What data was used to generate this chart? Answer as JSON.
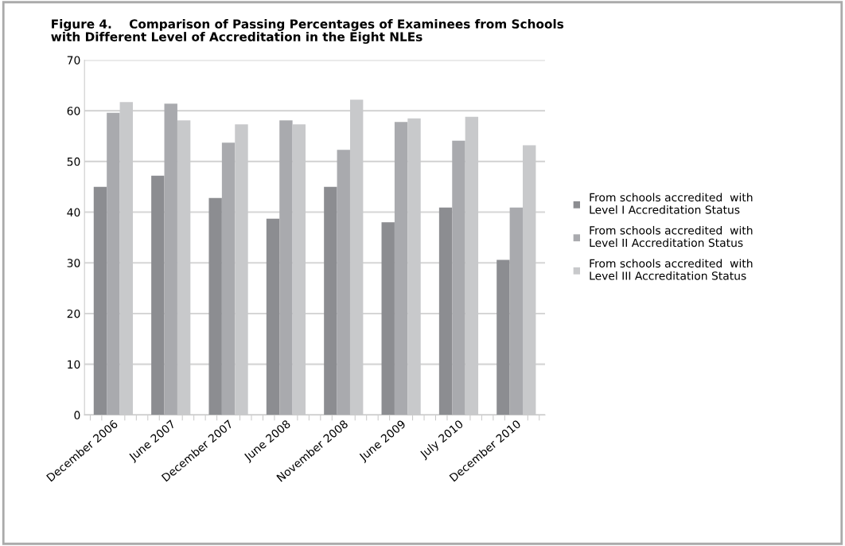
{
  "chart_data": {
    "type": "bar",
    "title": "Figure 4.    Comparison of Passing Percentages of Examinees from Schools\nwith Different Level of Accreditation in the Eight NLEs",
    "categories": [
      "December 2006",
      "June 2007",
      "December 2007",
      "June 2008",
      "November 2008",
      "June 2009",
      "July 2010",
      "December 2010"
    ],
    "series": [
      {
        "name": "From schools accredited  with\nLevel I Accreditation Status",
        "color": "#8c8d91",
        "values": [
          45.0,
          47.2,
          42.8,
          38.7,
          45.0,
          38.0,
          40.9,
          30.6
        ]
      },
      {
        "name": "From schools accredited  with\nLevel II Accreditation Status",
        "color": "#a9aaae",
        "values": [
          59.6,
          61.4,
          53.7,
          58.1,
          52.3,
          57.8,
          54.1,
          40.9
        ]
      },
      {
        "name": "From schools accredited  with\nLevel III Accreditation Status",
        "color": "#c8c9cb",
        "values": [
          61.7,
          58.1,
          57.3,
          57.3,
          62.2,
          58.5,
          58.8,
          53.2
        ]
      }
    ],
    "ylim": [
      0,
      70
    ],
    "yticks": [
      0,
      10,
      20,
      30,
      40,
      50,
      60,
      70
    ],
    "grid": "y",
    "legend": "right"
  }
}
